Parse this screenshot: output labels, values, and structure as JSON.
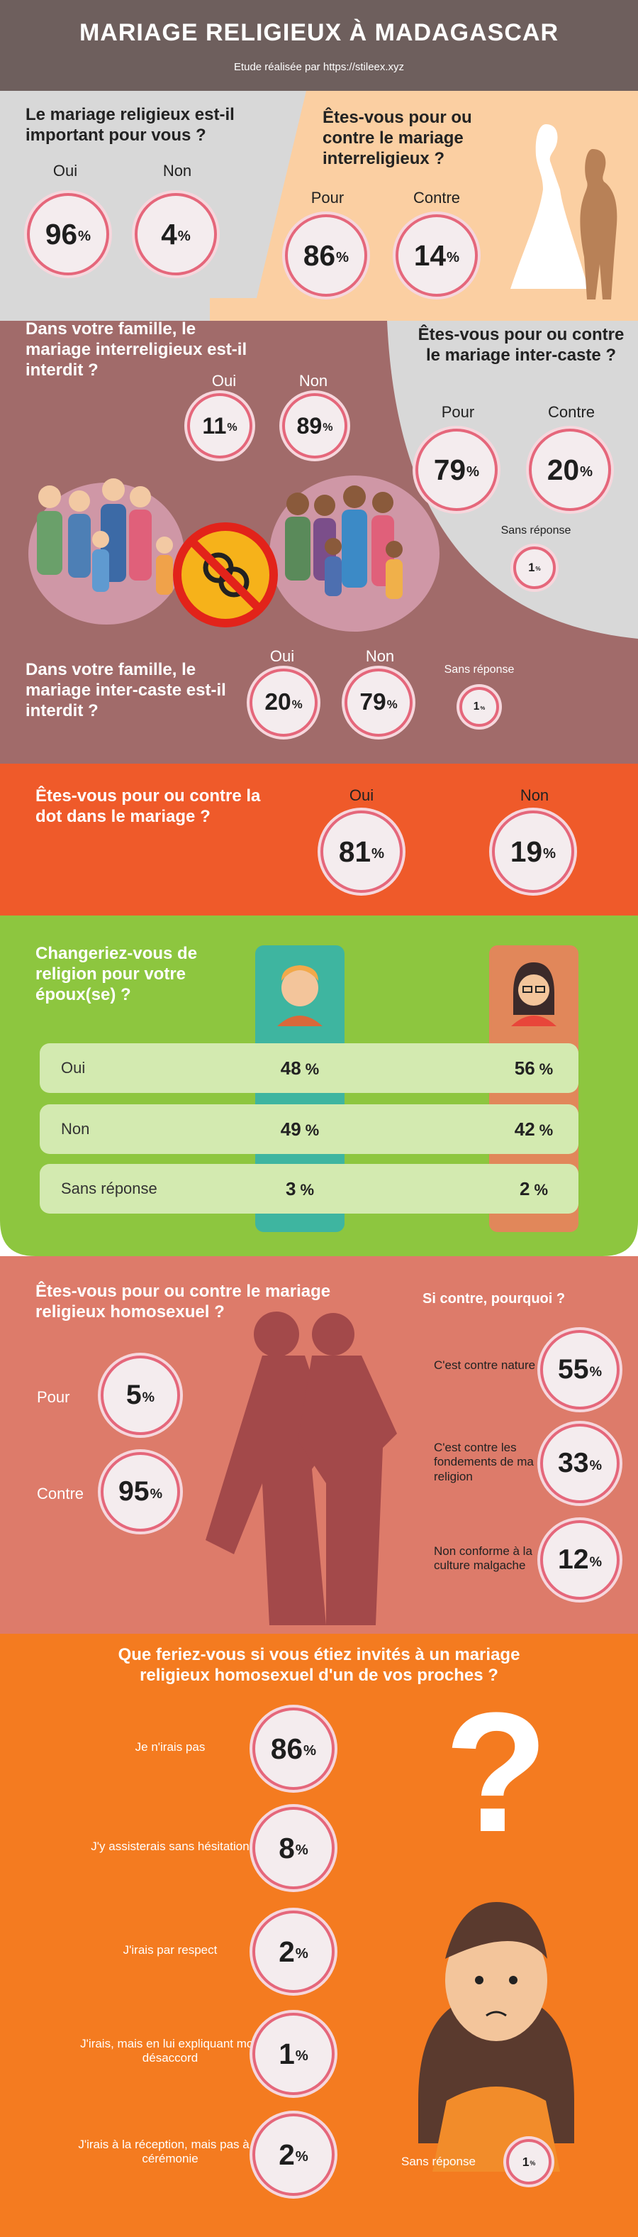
{
  "header": {
    "title": "MARIAGE RELIGIEUX À MADAGASCAR",
    "subtitle": "Etude réalisée par https://stileex.xyz"
  },
  "percent_sign": "%",
  "q1": {
    "question": "Le mariage religieux est-il important pour vous ?",
    "answers": [
      {
        "label": "Oui",
        "value": 96
      },
      {
        "label": "Non",
        "value": 4
      }
    ]
  },
  "q2": {
    "question": "Êtes-vous pour ou contre le mariage interreligieux ?",
    "answers": [
      {
        "label": "Pour",
        "value": 86
      },
      {
        "label": "Contre",
        "value": 14
      }
    ]
  },
  "q3": {
    "question": "Dans votre famille, le mariage interreligieux est-il interdit ?",
    "answers": [
      {
        "label": "Oui",
        "value": 11
      },
      {
        "label": "Non",
        "value": 89
      }
    ]
  },
  "q4": {
    "question": "Êtes-vous pour ou contre le mariage inter-caste ?",
    "answers": [
      {
        "label": "Pour",
        "value": 79
      },
      {
        "label": "Contre",
        "value": 20
      },
      {
        "label": "Sans réponse",
        "value": 1
      }
    ]
  },
  "q5": {
    "question": "Dans votre famille, le mariage inter-caste est-il interdit ?",
    "answers": [
      {
        "label": "Oui",
        "value": 20
      },
      {
        "label": "Non",
        "value": 79
      },
      {
        "label": "Sans réponse",
        "value": 1
      }
    ]
  },
  "q6": {
    "question": "Êtes-vous pour ou contre la dot dans le mariage ?",
    "answers": [
      {
        "label": "Oui",
        "value": 81
      },
      {
        "label": "Non",
        "value": 19
      }
    ]
  },
  "q7": {
    "question": "Changeriez-vous de religion pour votre époux(se) ?",
    "rows": [
      {
        "label": "Oui",
        "men": 48,
        "women": 56
      },
      {
        "label": "Non",
        "men": 49,
        "women": 42
      },
      {
        "label": "Sans réponse",
        "men": 3,
        "women": 2
      }
    ]
  },
  "q8": {
    "question": "Êtes-vous pour ou contre le mariage religieux homosexuel ?",
    "answers": [
      {
        "label": "Pour",
        "value": 5
      },
      {
        "label": "Contre",
        "value": 95
      }
    ]
  },
  "q9": {
    "question": "Si contre, pourquoi ?",
    "answers": [
      {
        "label": "C'est contre nature",
        "value": 55
      },
      {
        "label": "C'est contre les fondements de ma religion",
        "value": 33
      },
      {
        "label": "Non conforme à la culture malgache",
        "value": 12
      }
    ]
  },
  "q10": {
    "question": "Que feriez-vous si vous étiez invités à un mariage religieux homosexuel d'un de vos proches ?",
    "answers": [
      {
        "label": "Je n'irais pas",
        "value": 86
      },
      {
        "label": "J'y assisterais sans hésitation",
        "value": 8
      },
      {
        "label": "J'irais par respect",
        "value": 2
      },
      {
        "label": "J'irais, mais en lui expliquant mon désaccord",
        "value": 1
      },
      {
        "label": "J'irais à la réception, mais pas à la cérémonie",
        "value": 2
      },
      {
        "label": "Sans réponse",
        "value": 1
      }
    ]
  }
}
